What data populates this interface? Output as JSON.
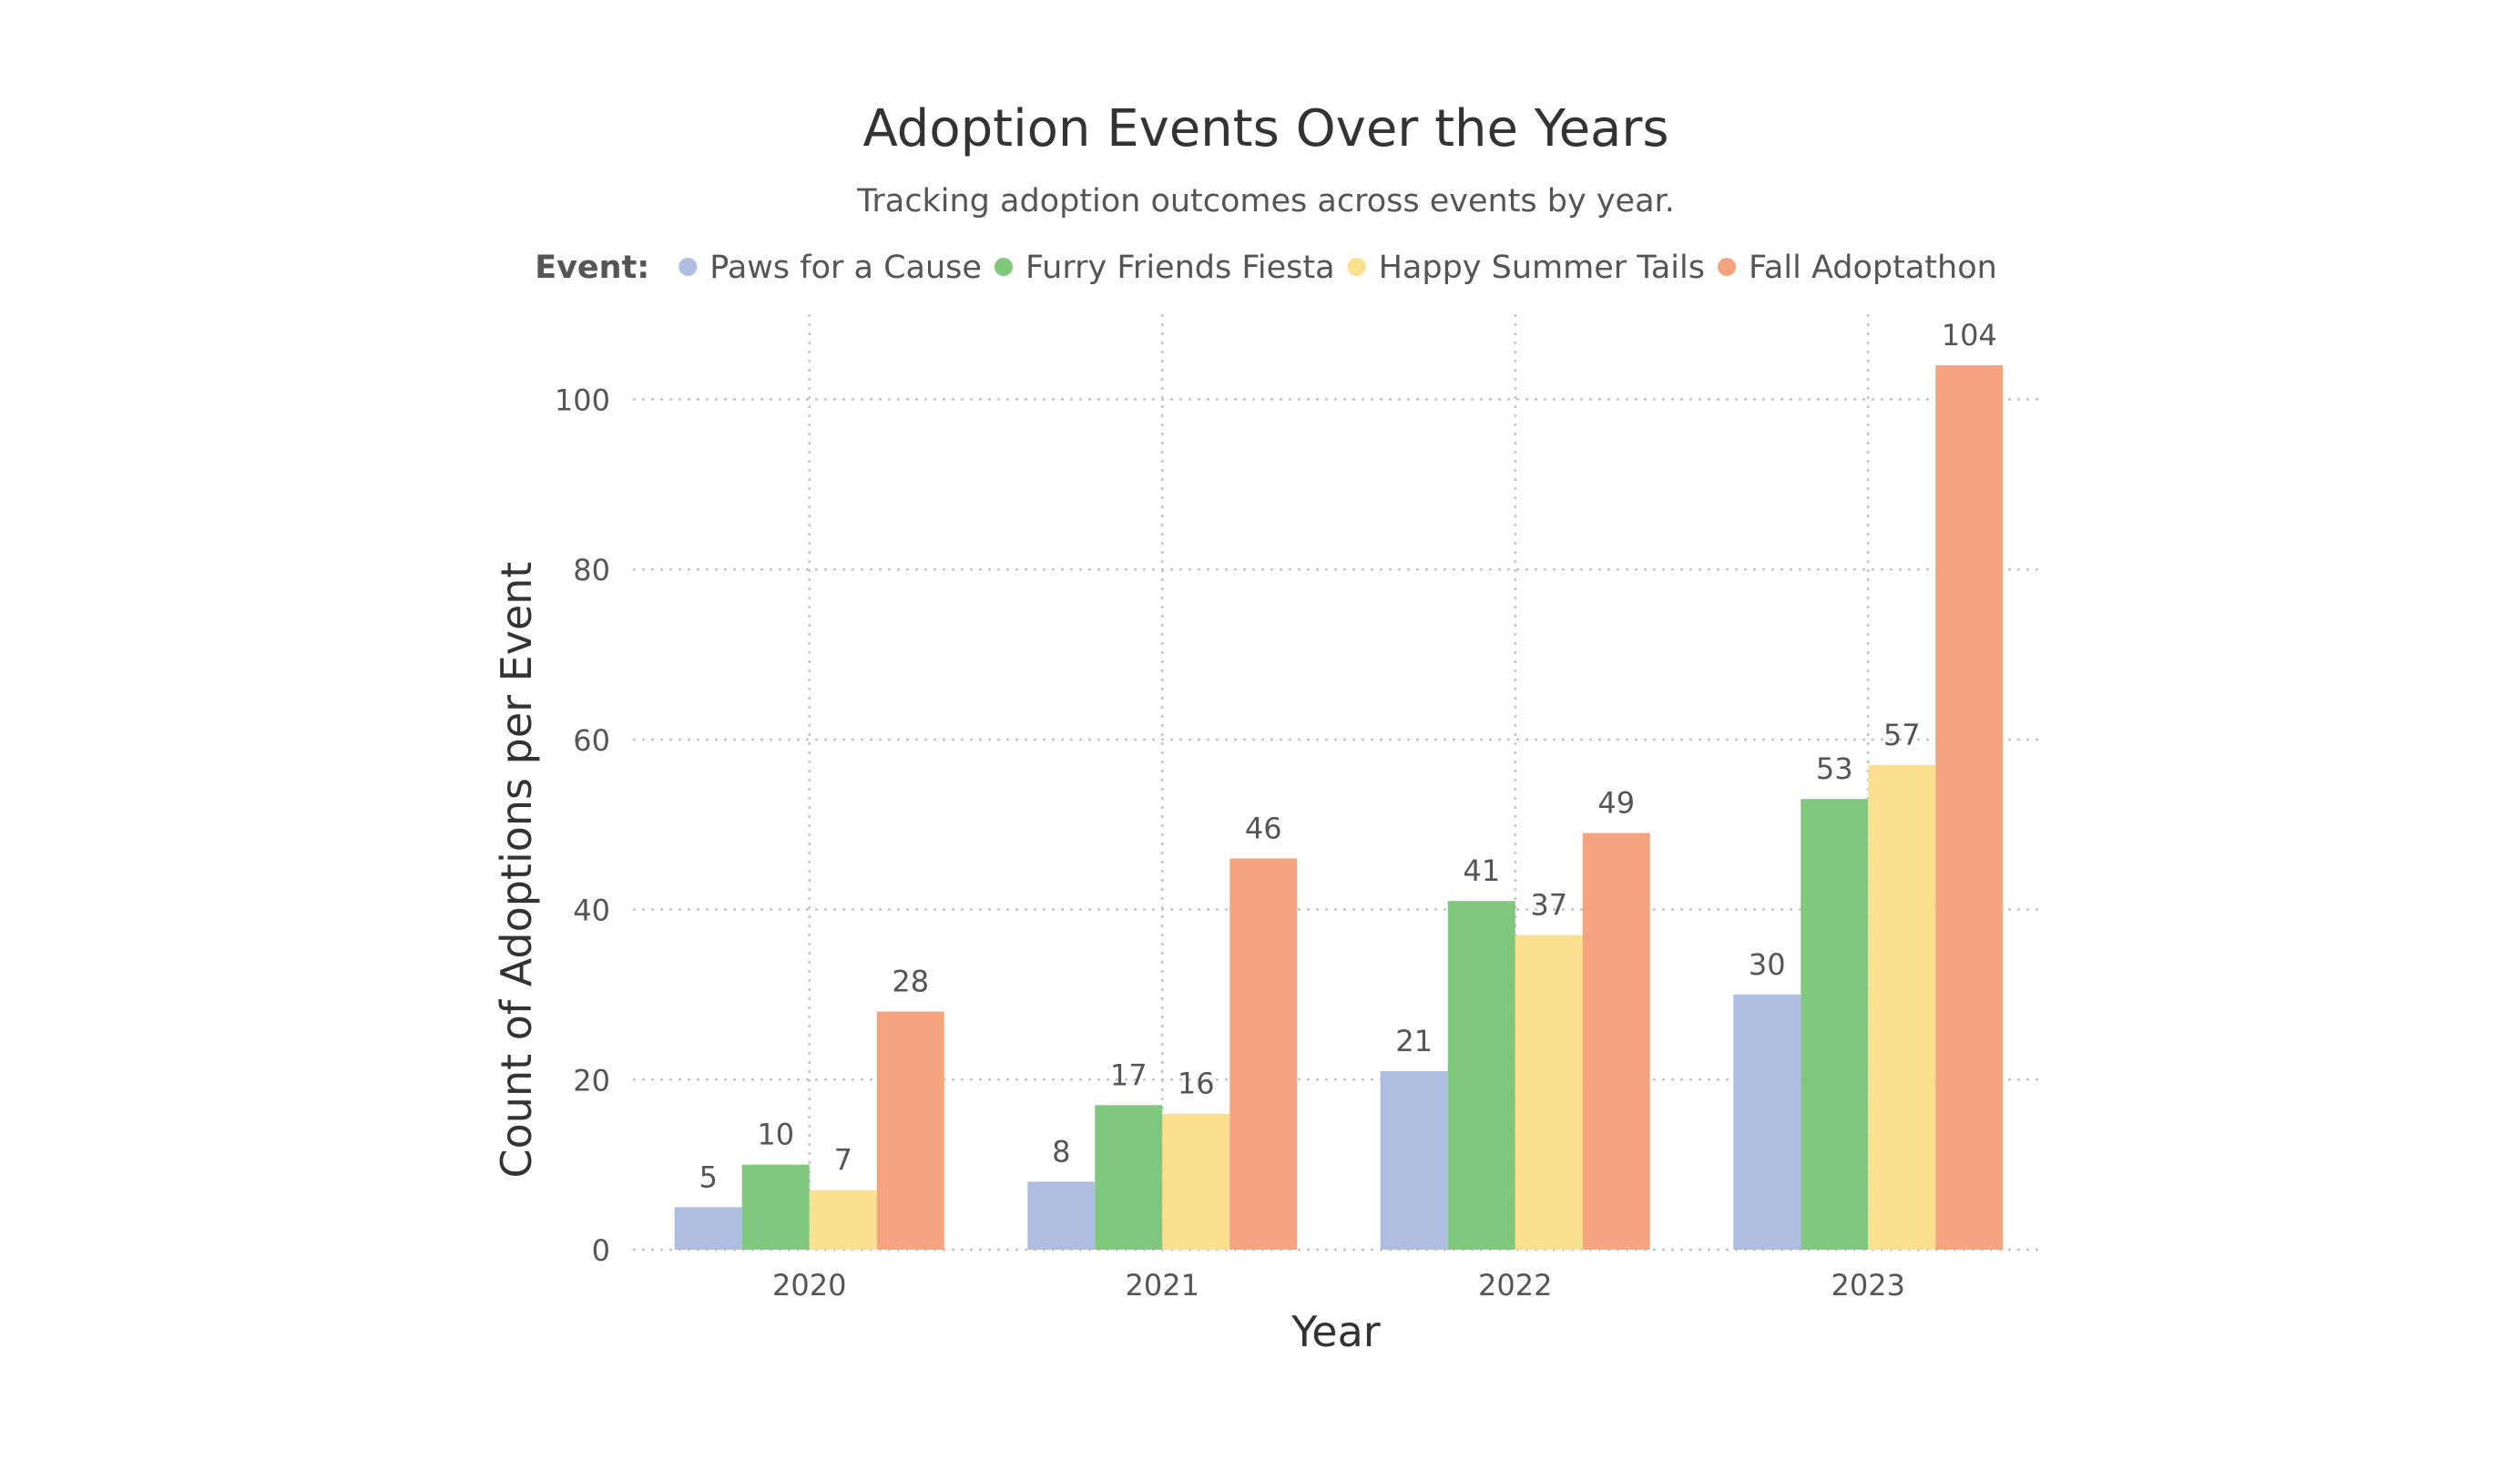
{
  "chart_data": {
    "type": "bar",
    "title": "Adoption Events Over the Years",
    "subtitle": "Tracking adoption outcomes across events by year.",
    "xlabel": "Year",
    "ylabel": "Count of Adoptions per Event",
    "legend_title": "Event:",
    "legend_position": "top",
    "grid": true,
    "categories": [
      "2020",
      "2021",
      "2022",
      "2023"
    ],
    "yticks": [
      0,
      20,
      40,
      60,
      80,
      100
    ],
    "ylim": [
      0,
      110
    ],
    "series": [
      {
        "name": "Paws for a Cause",
        "color": "#aebde0",
        "values": [
          5,
          8,
          21,
          30
        ]
      },
      {
        "name": "Furry Friends Fiesta",
        "color": "#80c87e",
        "values": [
          10,
          17,
          41,
          53
        ]
      },
      {
        "name": "Happy Summer Tails",
        "color": "#fae08f",
        "values": [
          7,
          16,
          37,
          57
        ]
      },
      {
        "name": "Fall Adoptathon",
        "color": "#f6a47f",
        "values": [
          28,
          46,
          49,
          104
        ]
      }
    ]
  }
}
